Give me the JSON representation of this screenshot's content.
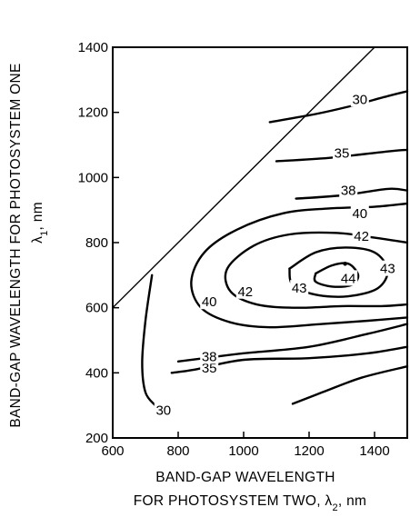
{
  "chart_data": {
    "type": "contour",
    "xlabel_line1": "BAND-GAP WAVELENGTH",
    "xlabel_line2_text": "FOR PHOTOSYSTEM TWO, λ",
    "xlabel_line2_sub": "2",
    "xlabel_line2_unit": ", nm",
    "ylabel_line1": "BAND-GAP WAVELENGTH FOR PHOTOSYSTEM ONE",
    "ylabel_line2_text": "λ",
    "ylabel_line2_sub": "1",
    "ylabel_line2_unit": ", nm",
    "xlim": [
      600,
      1500
    ],
    "ylim": [
      200,
      1400
    ],
    "xticks": [
      "600",
      "800",
      "1000",
      "1200",
      "1400"
    ],
    "yticks": [
      "200",
      "400",
      "600",
      "800",
      "1000",
      "1200",
      "1400"
    ],
    "diagonal": [
      [
        600,
        600
      ],
      [
        1400,
        1400
      ]
    ],
    "contours": [
      {
        "level": "30",
        "segments": [
          [
            [
              1080,
              1170
            ],
            [
              1220,
              1195
            ],
            [
              1330,
              1220
            ],
            [
              1440,
              1250
            ],
            [
              1500,
              1265
            ]
          ],
          [
            [
              720,
              700
            ],
            [
              700,
              560
            ],
            [
              690,
              430
            ],
            [
              700,
              340
            ],
            [
              730,
              300
            ]
          ]
        ],
        "labels": [
          [
            1355,
            1240
          ],
          [
            755,
            285
          ]
        ]
      },
      {
        "level": "35",
        "segments": [
          [
            [
              1100,
              1050
            ],
            [
              1260,
              1060
            ],
            [
              1440,
              1080
            ],
            [
              1500,
              1085
            ]
          ],
          [
            [
              1500,
              480
            ],
            [
              1380,
              460
            ],
            [
              1200,
              445
            ],
            [
              1000,
              440
            ],
            [
              850,
              410
            ],
            [
              780,
              400
            ]
          ]
        ],
        "labels": [
          [
            1300,
            1075
          ],
          [
            895,
            415
          ]
        ]
      },
      {
        "level": "38",
        "segments": [
          [
            [
              1160,
              935
            ],
            [
              1300,
              945
            ],
            [
              1440,
              965
            ],
            [
              1500,
              960
            ]
          ],
          [
            [
              1500,
              550
            ],
            [
              1380,
              520
            ],
            [
              1200,
              480
            ],
            [
              1000,
              460
            ],
            [
              880,
              445
            ],
            [
              800,
              435
            ]
          ]
        ],
        "labels": [
          [
            1320,
            960
          ],
          [
            895,
            450
          ]
        ]
      },
      {
        "level": "40",
        "segments": [
          [
            [
              1500,
              920
            ],
            [
              1400,
              910
            ],
            [
              1260,
              905
            ],
            [
              1120,
              890
            ],
            [
              980,
              840
            ],
            [
              880,
              770
            ],
            [
              840,
              680
            ],
            [
              870,
              600
            ],
            [
              960,
              555
            ],
            [
              1080,
              540
            ],
            [
              1240,
              550
            ],
            [
              1380,
              560
            ],
            [
              1500,
              570
            ]
          ]
        ],
        "labels": [
          [
            1355,
            890
          ],
          [
            895,
            618
          ]
        ]
      },
      {
        "level": "42",
        "segments": [
          [
            [
              1500,
              800
            ],
            [
              1400,
              815
            ],
            [
              1280,
              830
            ],
            [
              1140,
              825
            ],
            [
              1030,
              790
            ],
            [
              950,
              720
            ],
            [
              960,
              650
            ],
            [
              1040,
              610
            ],
            [
              1160,
              600
            ],
            [
              1300,
              605
            ],
            [
              1420,
              605
            ],
            [
              1500,
              610
            ]
          ]
        ],
        "labels": [
          [
            1360,
            820
          ],
          [
            1005,
            650
          ]
        ]
      },
      {
        "level": "43",
        "segments": [
          [
            [
              1140,
              720
            ],
            [
              1220,
              770
            ],
            [
              1310,
              785
            ],
            [
              1400,
              770
            ],
            [
              1440,
              715
            ],
            [
              1410,
              660
            ],
            [
              1320,
              635
            ],
            [
              1220,
              640
            ],
            [
              1150,
              670
            ],
            [
              1140,
              720
            ]
          ]
        ],
        "labels": [
          [
            1440,
            720
          ],
          [
            1170,
            660
          ]
        ]
      },
      {
        "level": "44",
        "segments": [
          [
            [
              1220,
              705
            ],
            [
              1270,
              730
            ],
            [
              1320,
              735
            ],
            [
              1350,
              700
            ],
            [
              1330,
              670
            ],
            [
              1270,
              665
            ],
            [
              1220,
              680
            ],
            [
              1220,
              705
            ]
          ]
        ],
        "labels": [
          [
            1320,
            690
          ]
        ]
      },
      {
        "level": "",
        "segments": [
          [
            [
              1150,
              305
            ],
            [
              1240,
              340
            ],
            [
              1360,
              385
            ],
            [
              1500,
              420
            ]
          ]
        ],
        "labels": []
      }
    ],
    "point": [
      1310,
      735
    ]
  }
}
